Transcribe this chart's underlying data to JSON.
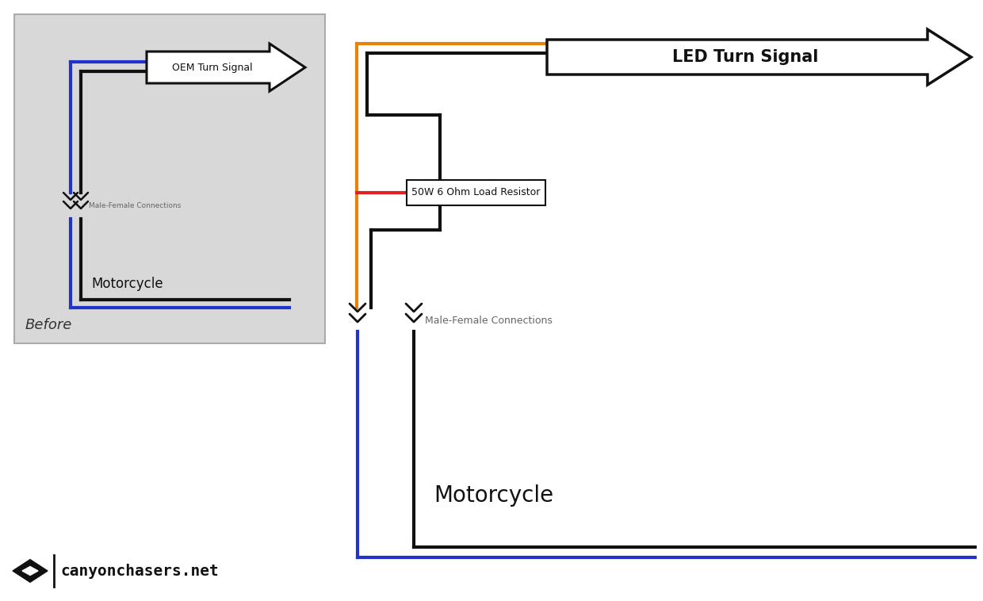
{
  "bg_color": "#ffffff",
  "panel_bg": "#d8d8d8",
  "before_label": "Before",
  "oem_arrow_label": "OEM Turn Signal",
  "led_arrow_label": "LED Turn Signal",
  "motorcycle_label": "Motorcycle",
  "connector_label": "Male-Female Connections",
  "resistor_label": "50W 6 Ohm Load Resistor",
  "wire_black": "#111111",
  "wire_blue": "#2233cc",
  "wire_orange": "#e8820a",
  "wire_red": "#dd2222",
  "lw": 3.0
}
